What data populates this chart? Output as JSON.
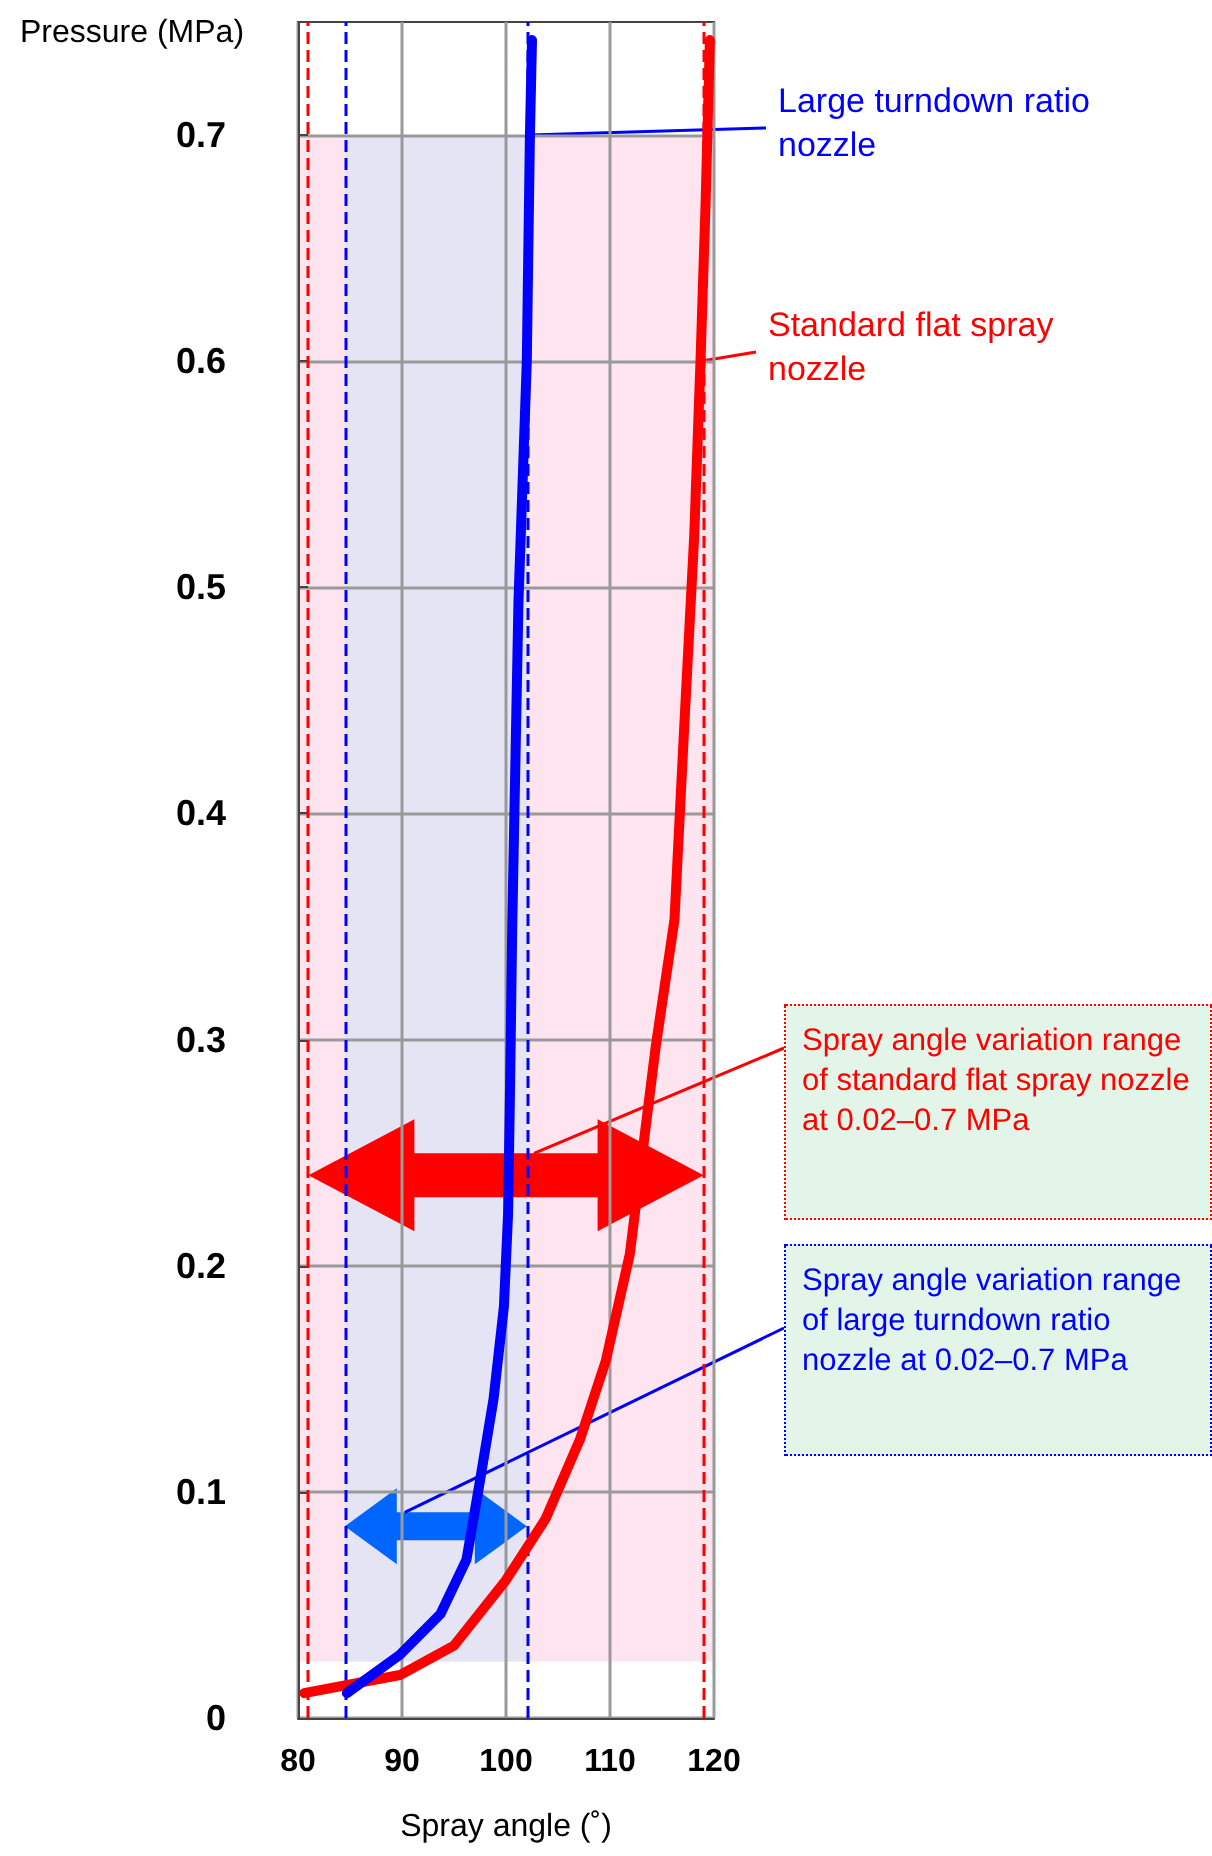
{
  "chart_data": {
    "type": "line",
    "xlabel": "Spray angle (˚)",
    "ylabel": "Pressure (MPa)",
    "xlim": [
      80,
      120
    ],
    "xticks": [
      80,
      90,
      100,
      110,
      120
    ],
    "ylim": [
      0,
      0.75
    ],
    "yticks": [
      0,
      0.1,
      0.2,
      0.3,
      0.4,
      0.5,
      0.6,
      0.7
    ],
    "grid": true,
    "legend": "top right",
    "marker": "none",
    "line_style": "solid",
    "series": [
      {
        "name": "Standard flat spray nozzle",
        "color": "#ff0000",
        "x": [
          80.6,
          89.8,
          95.0,
          100.0,
          103.8,
          107.1,
          109.6,
          111.9,
          114.4,
          116.2,
          117.1,
          118.1,
          118.7,
          119.2,
          119.6
        ],
        "values": [
          0.011,
          0.019,
          0.032,
          0.061,
          0.088,
          0.123,
          0.158,
          0.205,
          0.297,
          0.353,
          0.435,
          0.523,
          0.6,
          0.671,
          0.742
        ]
      },
      {
        "name": "Large turndown ratio nozzle",
        "color": "#0000ff",
        "x": [
          84.7,
          89.8,
          93.7,
          96.2,
          97.5,
          98.8,
          99.8,
          100.2,
          100.4,
          100.6,
          101.2,
          102.0,
          102.3,
          102.5
        ],
        "values": [
          0.011,
          0.028,
          0.046,
          0.07,
          0.105,
          0.141,
          0.182,
          0.223,
          0.282,
          0.35,
          0.494,
          0.6,
          0.7,
          0.742
        ]
      }
    ],
    "ref_lines": [
      {
        "axis": "x",
        "value": 81,
        "color": "#ff0000",
        "line_style": "dashed"
      },
      {
        "axis": "x",
        "value": 119,
        "color": "#ff0000",
        "line_style": "dashed"
      },
      {
        "axis": "x",
        "value": 84.5,
        "color": "#0000ff",
        "line_style": "dashed"
      },
      {
        "axis": "x",
        "value": 102,
        "color": "#0000ff",
        "line_style": "dashed"
      }
    ],
    "bands": [
      {
        "axis": "y",
        "from": 0.025,
        "to": 0.7,
        "color": "#fde4ef"
      },
      {
        "axis": "x",
        "from": 84.5,
        "to": 102,
        "color": "#e4e4f4"
      }
    ],
    "annotations": [
      "Spray angle variation range of standard flat spray nozzle at 0.02–0.7 MPa",
      "Spray angle variation range of large turndown ratio nozzle at 0.02–0.7 MPa"
    ]
  }
}
